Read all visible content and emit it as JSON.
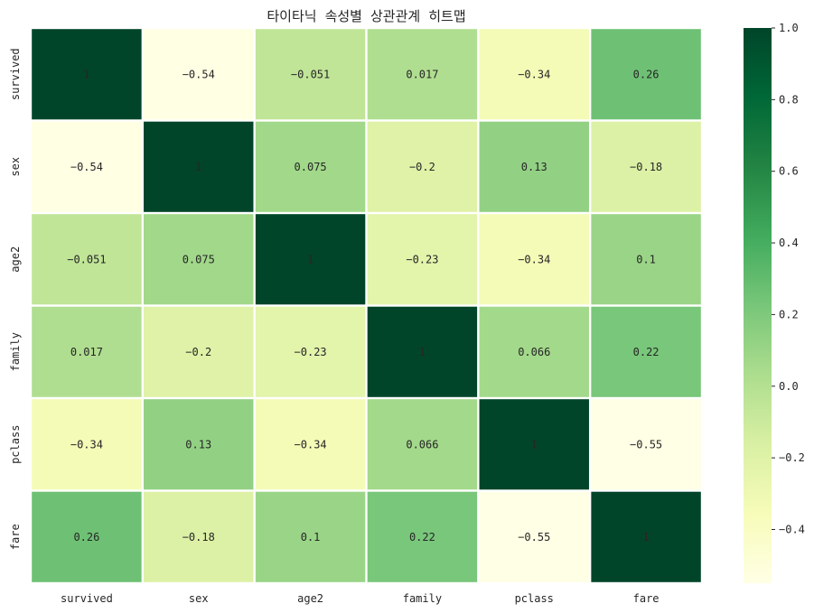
{
  "chart_data": {
    "type": "heatmap",
    "title": "타이타닉 속성별 상관관계 히트맵",
    "rows": [
      "survived",
      "sex",
      "age2",
      "family",
      "pclass",
      "fare"
    ],
    "columns": [
      "survived",
      "sex",
      "age2",
      "family",
      "pclass",
      "fare"
    ],
    "values": [
      [
        1,
        -0.54,
        -0.051,
        0.017,
        -0.34,
        0.26
      ],
      [
        -0.54,
        1,
        0.075,
        -0.2,
        0.13,
        -0.18
      ],
      [
        -0.051,
        0.075,
        1,
        -0.23,
        -0.34,
        0.1
      ],
      [
        0.017,
        -0.2,
        -0.23,
        1,
        0.066,
        0.22
      ],
      [
        -0.34,
        0.13,
        -0.34,
        0.066,
        1,
        -0.55
      ],
      [
        0.26,
        -0.18,
        0.1,
        0.22,
        -0.55,
        1
      ]
    ],
    "annotations": [
      [
        "1",
        "-0.54",
        "-0.051",
        "0.017",
        "-0.34",
        "0.26"
      ],
      [
        "-0.54",
        "1",
        "0.075",
        "-0.2",
        "0.13",
        "-0.18"
      ],
      [
        "-0.051",
        "0.075",
        "1",
        "-0.23",
        "-0.34",
        "0.1"
      ],
      [
        "0.017",
        "-0.2",
        "-0.23",
        "1",
        "0.066",
        "0.22"
      ],
      [
        "-0.34",
        "0.13",
        "-0.34",
        "0.066",
        "1",
        "-0.55"
      ],
      [
        "0.26",
        "-0.18",
        "0.1",
        "0.22",
        "-0.55",
        "1"
      ]
    ],
    "colormap": "YlGn",
    "colormap_stops": [
      "#ffffe5",
      "#f7fcb9",
      "#d9f0a3",
      "#addd8e",
      "#78c679",
      "#41ab5d",
      "#238443",
      "#006837",
      "#004529"
    ],
    "vmin": -0.55,
    "vmax": 1,
    "colorbar_ticks": [
      "1.0",
      "0.8",
      "0.6",
      "0.4",
      "0.2",
      "0.0",
      "−0.2",
      "−0.4"
    ],
    "colorbar_tick_values": [
      1.0,
      0.8,
      0.6,
      0.4,
      0.2,
      0.0,
      -0.2,
      -0.4
    ],
    "cell_separator_color": "#ffffff"
  }
}
